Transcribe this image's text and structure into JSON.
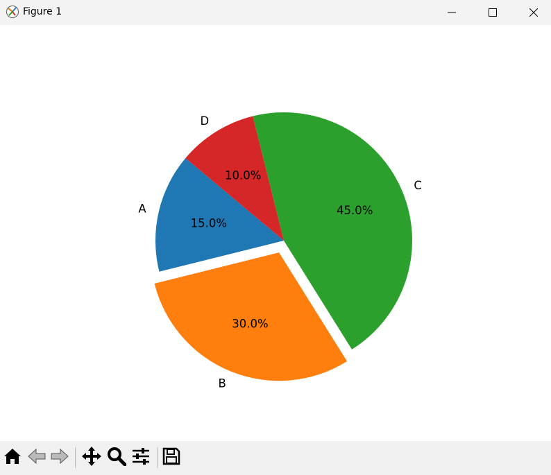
{
  "window": {
    "title": "Figure 1",
    "icons": [
      "app-figure-icon",
      "minimize-icon",
      "maximize-icon",
      "close-icon"
    ]
  },
  "toolbar": {
    "tools": [
      "home-icon",
      "back-arrow-icon",
      "forward-arrow-icon",
      "pan-move-icon",
      "zoom-magnifier-icon",
      "configure-subplots-icon",
      "save-floppy-icon"
    ]
  },
  "chart_data": {
    "type": "pie",
    "labels": [
      "A",
      "B",
      "C",
      "D"
    ],
    "values": [
      15,
      30,
      45,
      10
    ],
    "autopct_labels": [
      "15.0%",
      "30.0%",
      "45.0%",
      "10.0%"
    ],
    "colors": [
      "#1f77b4",
      "#ff7f0e",
      "#2ca02c",
      "#d62728"
    ],
    "explode": [
      0,
      0.1,
      0,
      0
    ],
    "start_angle_deg": 140,
    "direction": "counterclockwise",
    "title": ""
  }
}
